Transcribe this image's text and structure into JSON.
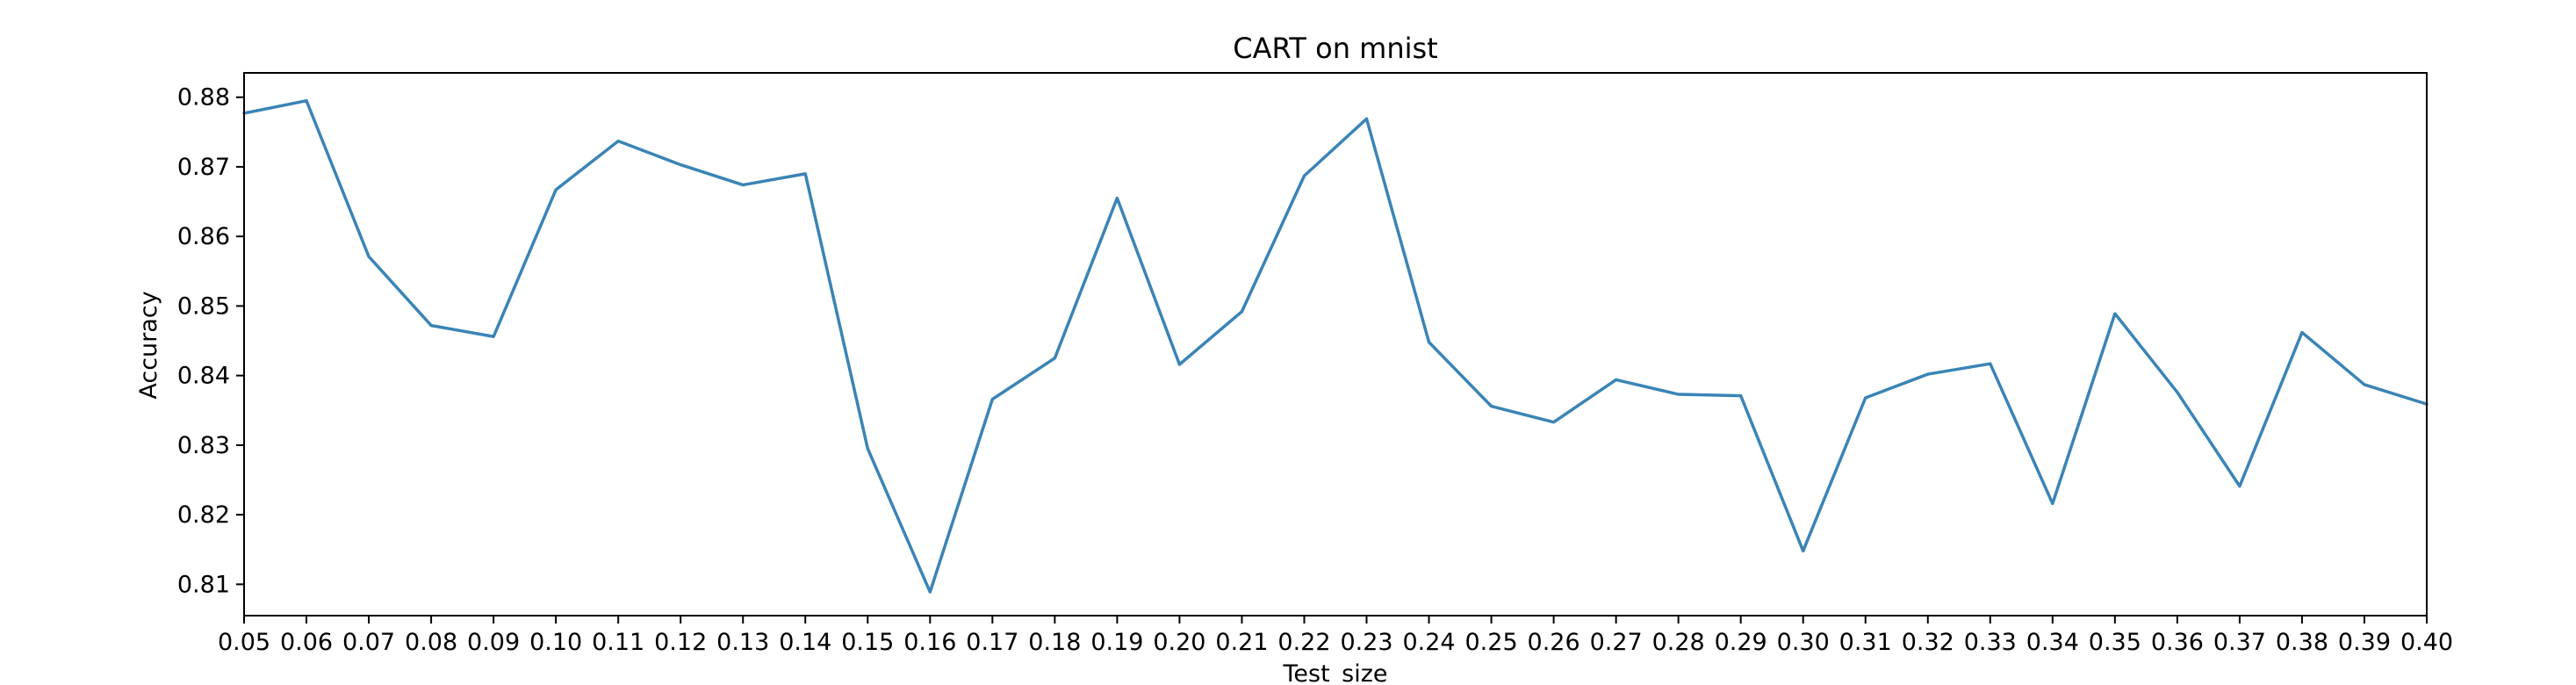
{
  "chart_data": {
    "type": "line",
    "title": "CART on mnist",
    "xlabel": "Test_size",
    "ylabel": "Accuracy",
    "xlim": [
      0.05,
      0.4
    ],
    "ylim": [
      0.8055,
      0.8835
    ],
    "xticks": [
      "0.05",
      "0.06",
      "0.07",
      "0.08",
      "0.09",
      "0.10",
      "0.11",
      "0.12",
      "0.13",
      "0.14",
      "0.15",
      "0.16",
      "0.17",
      "0.18",
      "0.19",
      "0.20",
      "0.21",
      "0.22",
      "0.23",
      "0.24",
      "0.25",
      "0.26",
      "0.27",
      "0.28",
      "0.29",
      "0.30",
      "0.31",
      "0.32",
      "0.33",
      "0.34",
      "0.35",
      "0.36",
      "0.37",
      "0.38",
      "0.39",
      "0.40"
    ],
    "yticks": [
      "0.81",
      "0.82",
      "0.83",
      "0.84",
      "0.85",
      "0.86",
      "0.87",
      "0.88"
    ],
    "grid": false,
    "series": [
      {
        "color": "#3a84b6",
        "x": [
          0.05,
          0.06,
          0.07,
          0.08,
          0.09,
          0.1,
          0.11,
          0.12,
          0.13,
          0.14,
          0.15,
          0.16,
          0.17,
          0.18,
          0.19,
          0.2,
          0.21,
          0.22,
          0.23,
          0.24,
          0.25,
          0.26,
          0.27,
          0.28,
          0.29,
          0.3,
          0.31,
          0.32,
          0.33,
          0.34,
          0.35,
          0.36,
          0.37,
          0.38,
          0.39,
          0.4
        ],
        "y": [
          0.8777,
          0.8795,
          0.8571,
          0.8472,
          0.8456,
          0.8667,
          0.8737,
          0.8703,
          0.8674,
          0.869,
          0.8295,
          0.8089,
          0.8366,
          0.8425,
          0.8655,
          0.8416,
          0.8492,
          0.8687,
          0.8769,
          0.8448,
          0.8356,
          0.8333,
          0.8394,
          0.8373,
          0.8371,
          0.8148,
          0.8368,
          0.8402,
          0.8417,
          0.8216,
          0.8489,
          0.8376,
          0.8241,
          0.8462,
          0.8387,
          0.8359
        ]
      }
    ]
  }
}
